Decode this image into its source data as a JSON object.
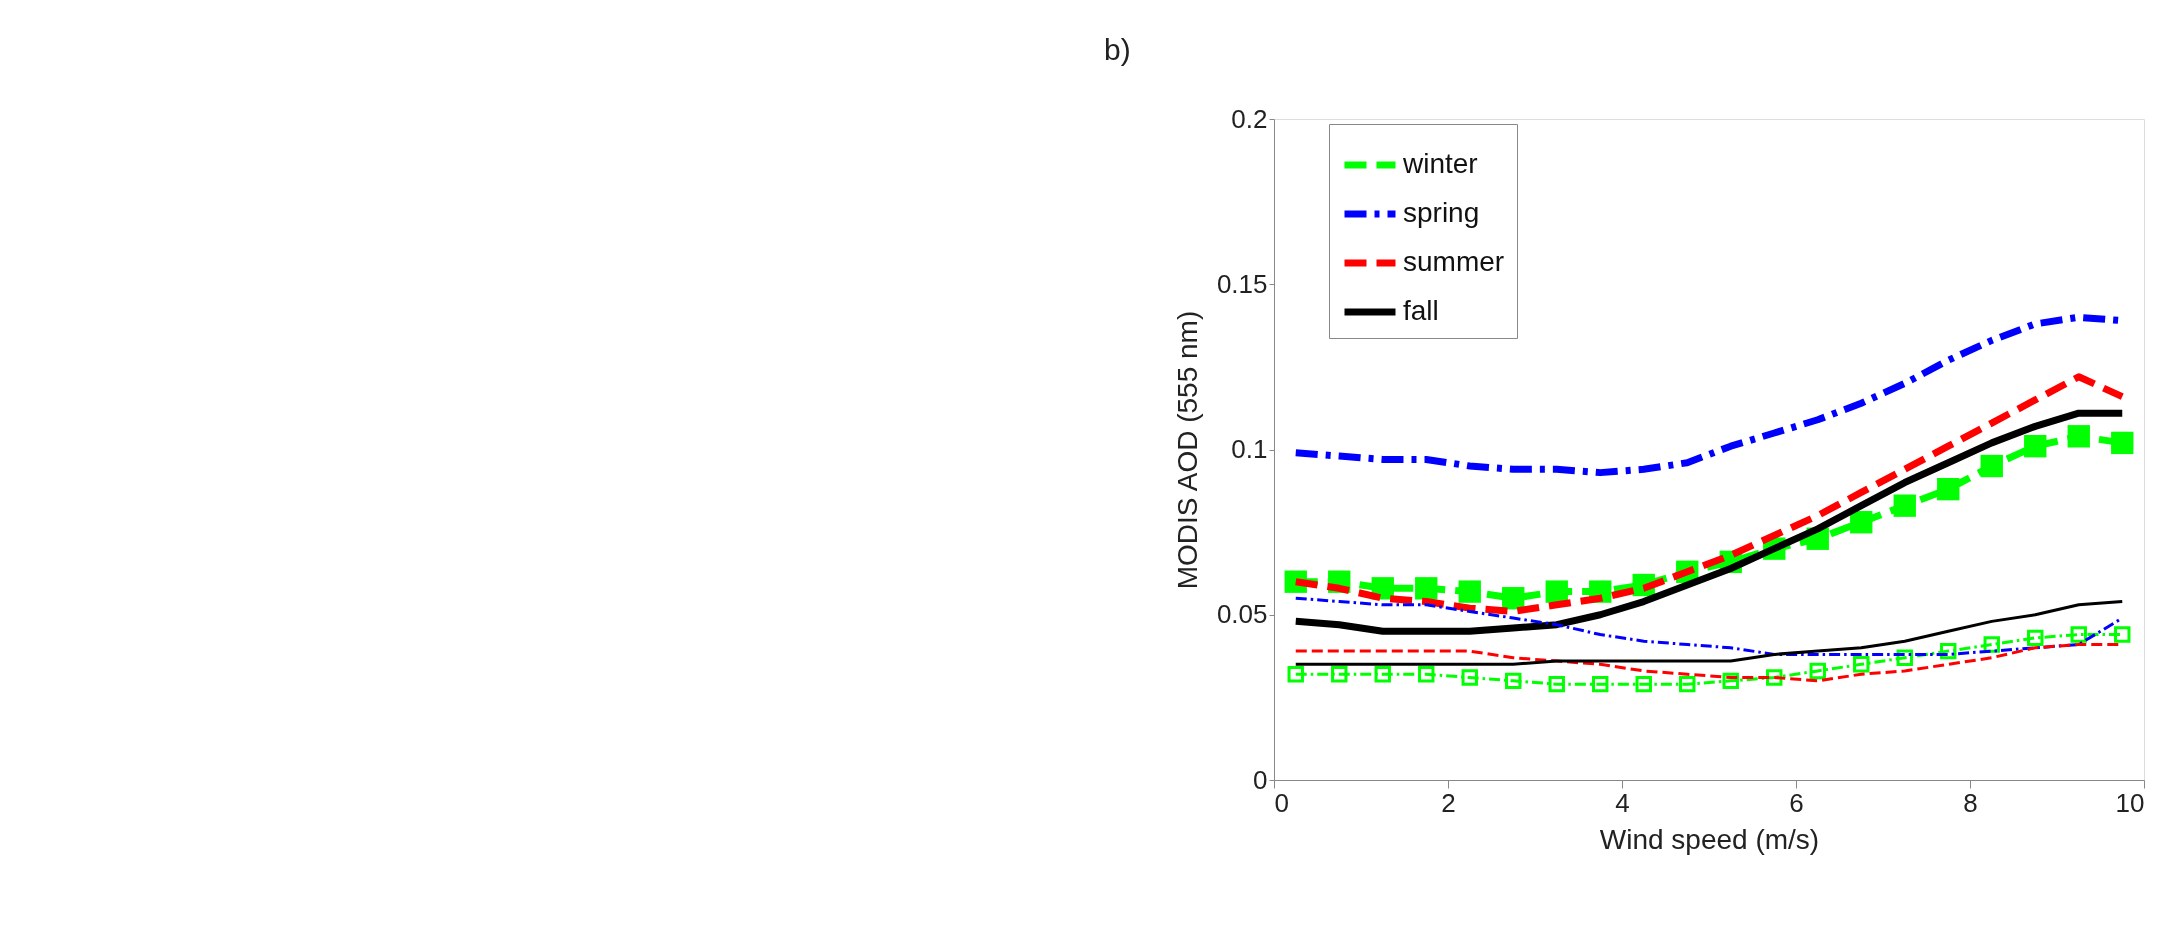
{
  "chart_data": {
    "type": "line",
    "title": "b)",
    "xlabel": "Wind speed (m/s)",
    "ylabel": "MODIS AOD (555 nm)",
    "x": [
      0.25,
      0.75,
      1.25,
      1.75,
      2.25,
      2.75,
      3.25,
      3.75,
      4.25,
      4.75,
      5.25,
      5.75,
      6.25,
      6.75,
      7.25,
      7.75,
      8.25,
      8.75,
      9.25,
      9.75
    ],
    "xlim": [
      0,
      10
    ],
    "xticks": [
      0,
      2,
      4,
      6,
      8,
      10
    ],
    "ylim": [
      0,
      0.2
    ],
    "yticks": [
      0,
      0.05,
      0.1,
      0.15,
      0.2
    ],
    "grid": false,
    "legend": "top left",
    "series": [
      {
        "name": "winter",
        "color": "#00ff00",
        "line_style": "dashed",
        "marker": "square",
        "values": [
          0.06,
          0.06,
          0.058,
          0.058,
          0.057,
          0.055,
          0.057,
          0.057,
          0.059,
          0.063,
          0.066,
          0.07,
          0.073,
          0.078,
          0.083,
          0.088,
          0.095,
          0.101,
          0.104,
          0.102
        ]
      },
      {
        "name": "spring",
        "color": "#0000ff",
        "line_style": "dashdot",
        "values": [
          0.099,
          0.098,
          0.097,
          0.097,
          0.095,
          0.094,
          0.094,
          0.093,
          0.094,
          0.096,
          0.101,
          0.105,
          0.109,
          0.114,
          0.12,
          0.127,
          0.133,
          0.138,
          0.14,
          0.139
        ]
      },
      {
        "name": "summer",
        "color": "#ff0000",
        "line_style": "dashed",
        "values": [
          0.06,
          0.058,
          0.055,
          0.054,
          0.052,
          0.051,
          0.053,
          0.055,
          0.058,
          0.063,
          0.068,
          0.074,
          0.08,
          0.087,
          0.094,
          0.101,
          0.108,
          0.115,
          0.122,
          0.116
        ]
      },
      {
        "name": "fall",
        "color": "#000000",
        "line_style": "solid",
        "values": [
          0.048,
          0.047,
          0.045,
          0.045,
          0.045,
          0.046,
          0.047,
          0.05,
          0.054,
          0.059,
          0.064,
          0.07,
          0.076,
          0.083,
          0.09,
          0.096,
          0.102,
          0.107,
          0.111,
          0.111
        ]
      },
      {
        "color": "#00ff00",
        "line_style": "dashdot",
        "marker": "square",
        "values": [
          0.032,
          0.032,
          0.032,
          0.032,
          0.031,
          0.03,
          0.029,
          0.029,
          0.029,
          0.029,
          0.03,
          0.031,
          0.033,
          0.035,
          0.037,
          0.039,
          0.041,
          0.043,
          0.044,
          0.044
        ]
      },
      {
        "color": "#0000ff",
        "line_style": "dashdot",
        "values": [
          0.055,
          0.054,
          0.053,
          0.053,
          0.051,
          0.049,
          0.047,
          0.044,
          0.042,
          0.041,
          0.04,
          0.038,
          0.038,
          0.038,
          0.038,
          0.038,
          0.039,
          0.04,
          0.041,
          0.049
        ]
      },
      {
        "color": "#ff0000",
        "line_style": "dashed",
        "values": [
          0.039,
          0.039,
          0.039,
          0.039,
          0.039,
          0.037,
          0.036,
          0.035,
          0.033,
          0.032,
          0.031,
          0.031,
          0.03,
          0.032,
          0.033,
          0.035,
          0.037,
          0.04,
          0.041,
          0.041
        ]
      },
      {
        "color": "#000000",
        "line_style": "solid",
        "values": [
          0.035,
          0.035,
          0.035,
          0.035,
          0.035,
          0.035,
          0.036,
          0.036,
          0.036,
          0.036,
          0.036,
          0.038,
          0.039,
          0.04,
          0.042,
          0.045,
          0.048,
          0.05,
          0.053,
          0.054
        ]
      }
    ]
  }
}
